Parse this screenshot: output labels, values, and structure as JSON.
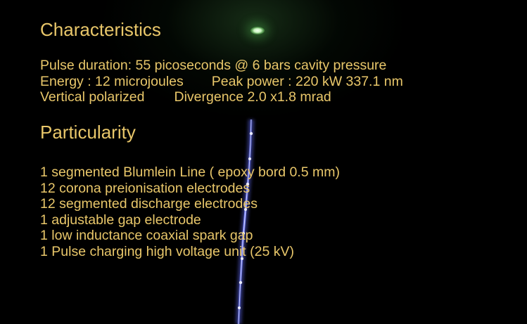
{
  "characteristics": {
    "heading": "Characteristics",
    "pulse_duration": "Pulse duration:  55 picoseconds @ 6 bars cavity pressure",
    "energy": "Energy : 12 microjoules",
    "peak_power": "Peak power : 220 kW  337.1 nm",
    "polarization": "Vertical polarized",
    "divergence": "Divergence  2.0 x1.8 mrad"
  },
  "particularity": {
    "heading": "Particularity",
    "items": [
      "1 segmented Blumlein Line ( epoxy bord 0.5 mm)",
      "12 corona preionisation electrodes",
      "12 segmented discharge electrodes",
      "1 adjustable gap electrode",
      "1 low inductance coaxial spark gap",
      "1 Pulse charging high voltage unit (25 kV)"
    ]
  },
  "colors": {
    "text": "#e9c76a",
    "background": "#000000",
    "beam": "#6f7cff",
    "glow": "#c9f5c0"
  }
}
